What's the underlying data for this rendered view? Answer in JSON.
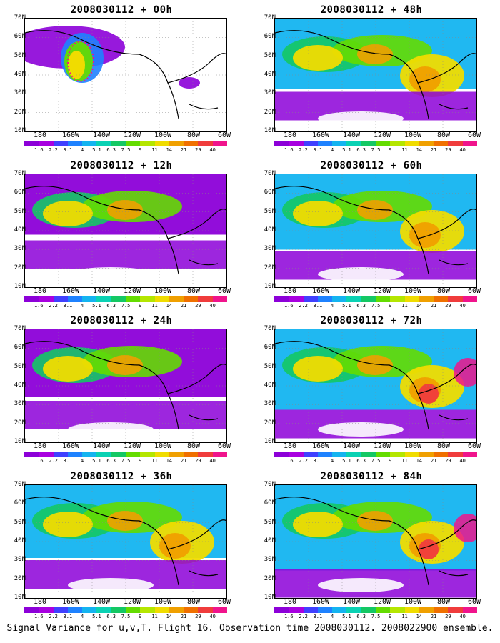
{
  "panels": [
    {
      "title": "2008030112 + 00h"
    },
    {
      "title": "2008030112 + 48h"
    },
    {
      "title": "2008030112 + 12h"
    },
    {
      "title": "2008030112 + 60h"
    },
    {
      "title": "2008030112 + 24h"
    },
    {
      "title": "2008030112 + 72h"
    },
    {
      "title": "2008030112 + 36h"
    },
    {
      "title": "2008030112 + 84h"
    }
  ],
  "axes": {
    "y_labels": [
      "70N",
      "60N",
      "50N",
      "40N",
      "30N",
      "20N",
      "10N"
    ],
    "x_labels": [
      "180",
      "160W",
      "140W",
      "120W",
      "100W",
      "80W",
      "60W"
    ]
  },
  "colorbar": {
    "labels": [
      "1.6",
      "2.2",
      "3.1",
      "4",
      "5.1",
      "6.3",
      "7.5",
      "9",
      "11",
      "14",
      "21",
      "29",
      "40"
    ],
    "colors": [
      "#8c00d8",
      "#a800e0",
      "#4040ff",
      "#1e82ff",
      "#14b4f0",
      "#0ad2b4",
      "#14c864",
      "#64dc00",
      "#b4e600",
      "#f0dc00",
      "#f0a000",
      "#f07000",
      "#f03c3c",
      "#f0148c"
    ]
  },
  "caption": "Signal Variance for u,v,T. Flight 16. Observation time 2008030112. 2008022900 ensemble."
}
